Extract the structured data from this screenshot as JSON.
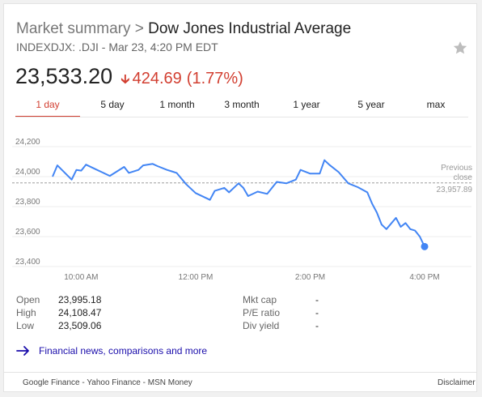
{
  "header": {
    "crumb": "Market summary",
    "separator": ">",
    "index_name": "Dow Jones Industrial Average",
    "subtitle": "INDEXDJX: .DJI - Mar 23, 4:20 PM EDT"
  },
  "quote": {
    "price": "23,533.20",
    "change": "424.69",
    "change_pct": "(1.77%)",
    "direction": "down",
    "down_color": "#d23f31"
  },
  "tabs": [
    {
      "label": "1 day",
      "active": true
    },
    {
      "label": "5 day",
      "active": false
    },
    {
      "label": "1 month",
      "active": false
    },
    {
      "label": "3 month",
      "active": false
    },
    {
      "label": "1 year",
      "active": false
    },
    {
      "label": "5 year",
      "active": false
    },
    {
      "label": "max",
      "active": false
    }
  ],
  "chart_data": {
    "type": "line",
    "y_ticks": [
      "24,200",
      "24,000",
      "23,800",
      "23,600",
      "23,400"
    ],
    "ylim": [
      23400,
      24200
    ],
    "x_ticks": [
      "10:00 AM",
      "12:00 PM",
      "2:00 PM",
      "4:00 PM"
    ],
    "x_tick_hours": [
      10,
      12,
      14,
      16
    ],
    "xlim": [
      9.5,
      16.0
    ],
    "grid": true,
    "line_color": "#4285f4",
    "previous_close": {
      "label_line1": "Previous",
      "label_line2": "close",
      "value_label": "23,957.89",
      "value": 23957.89
    },
    "series": [
      {
        "x": [
          9.5,
          9.583,
          9.833,
          9.917,
          10.0,
          10.083,
          10.25,
          10.5,
          10.75,
          10.833,
          11.0,
          11.083,
          11.25,
          11.333,
          11.5,
          11.583,
          11.667,
          11.833,
          12.0,
          12.25,
          12.333,
          12.5,
          12.583,
          12.75,
          12.833,
          12.917,
          13.083,
          13.25,
          13.417,
          13.583,
          13.75,
          13.833,
          14.0,
          14.167,
          14.25,
          14.333,
          14.5,
          14.667,
          14.833,
          15.0,
          15.083,
          15.167,
          15.25,
          15.333,
          15.5,
          15.583,
          15.667,
          15.75,
          15.833,
          15.917,
          16.0
        ],
        "y": [
          24000,
          24075,
          23980,
          24045,
          24040,
          24080,
          24050,
          24005,
          24065,
          24025,
          24045,
          24075,
          24085,
          24070,
          24045,
          24035,
          24025,
          23950,
          23890,
          23845,
          23905,
          23925,
          23895,
          23955,
          23925,
          23870,
          23900,
          23885,
          23965,
          23955,
          23980,
          24045,
          24020,
          24020,
          24110,
          24080,
          24030,
          23955,
          23930,
          23895,
          23820,
          23760,
          23680,
          23650,
          23725,
          23665,
          23690,
          23650,
          23640,
          23600,
          23533
        ]
      }
    ],
    "end_marker": {
      "x": 16.0,
      "y": 23533.2
    }
  },
  "stats": {
    "left": [
      {
        "label": "Open",
        "value": "23,995.18"
      },
      {
        "label": "High",
        "value": "24,108.47"
      },
      {
        "label": "Low",
        "value": "23,509.06"
      }
    ],
    "right": [
      {
        "label": "Mkt cap",
        "value": "-"
      },
      {
        "label": "P/E ratio",
        "value": "-"
      },
      {
        "label": "Div yield",
        "value": "-"
      }
    ]
  },
  "news": {
    "label": "Financial news, comparisons and more",
    "link_color": "#1a0dab"
  },
  "footer": {
    "links": [
      "Google Finance",
      "Yahoo Finance",
      "MSN Money"
    ],
    "separator": " - ",
    "disclaimer": "Disclaimer"
  },
  "icons": {
    "star": "star-icon",
    "down_arrow": "down-arrow-icon",
    "news_arrow": "right-arrow-icon"
  }
}
